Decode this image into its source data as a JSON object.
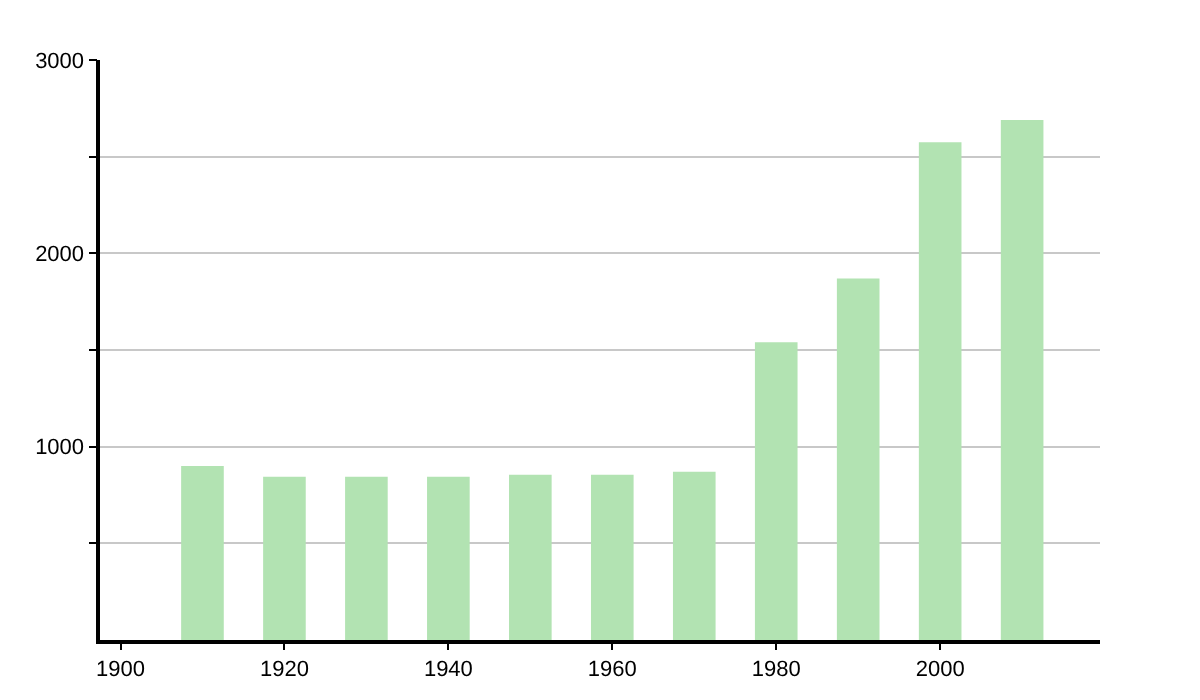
{
  "chart_data": {
    "type": "bar",
    "x": [
      1910,
      1920,
      1930,
      1940,
      1950,
      1960,
      1970,
      1980,
      1990,
      2000,
      2010
    ],
    "values": [
      900,
      845,
      845,
      845,
      855,
      855,
      870,
      1540,
      1870,
      2575,
      2690
    ],
    "color": "#b2e3b2",
    "xlim": [
      1897.5,
      2019.5
    ],
    "xticks": [
      1900,
      1920,
      1940,
      1960,
      1980,
      2000
    ],
    "ylim": [
      0,
      3000
    ],
    "yticks": [
      {
        "value": 500,
        "label": null
      },
      1000,
      {
        "value": 1500,
        "label": null
      },
      2000,
      {
        "value": 2500,
        "label": null
      },
      3000
    ],
    "grid": "y"
  }
}
